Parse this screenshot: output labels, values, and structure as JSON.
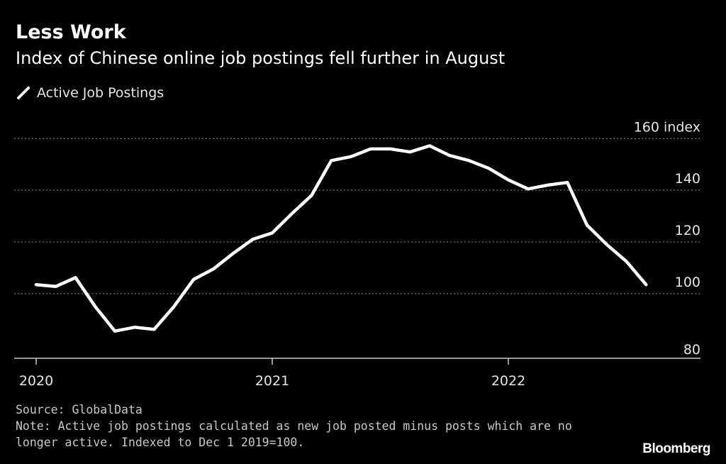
{
  "chart_data": {
    "type": "line",
    "title": "Less Work",
    "subtitle": "Index of Chinese online job postings fell further in August",
    "series": [
      {
        "name": "Active Job Postings",
        "color": "#ffffff",
        "x": [
          "2020-01",
          "2020-02",
          "2020-03",
          "2020-04",
          "2020-05",
          "2020-06",
          "2020-07",
          "2020-08",
          "2020-09",
          "2020-10",
          "2020-11",
          "2020-12",
          "2021-01",
          "2021-02",
          "2021-03",
          "2021-04",
          "2021-05",
          "2021-06",
          "2021-07",
          "2021-08",
          "2021-09",
          "2021-10",
          "2021-11",
          "2021-12",
          "2022-01",
          "2022-02",
          "2022-03",
          "2022-04",
          "2022-05",
          "2022-06",
          "2022-07",
          "2022-08"
        ],
        "values": [
          103.5,
          102.8,
          106.2,
          95,
          85.5,
          87,
          86.2,
          95,
          105.5,
          109.5,
          115.5,
          121,
          123.5,
          131,
          138,
          151.5,
          153,
          156,
          156,
          154.8,
          157.2,
          153.5,
          151.5,
          148.5,
          144,
          140.5,
          142,
          143,
          126.5,
          119,
          112.5,
          103.5
        ]
      }
    ],
    "y_axis": {
      "ylim": [
        75,
        162
      ],
      "ticks": [
        160,
        140,
        120,
        100,
        80
      ],
      "tick_labels": [
        "160",
        "140",
        "120",
        "100",
        "80"
      ],
      "unit_label": "index",
      "position": "right",
      "grid": true
    },
    "x_axis": {
      "tick_labels": [
        "2020",
        "2021",
        "2022"
      ],
      "tick_dates": [
        "2020-01",
        "2021-01",
        "2022-01"
      ]
    },
    "legend_placement": "top-left"
  },
  "source": "Source: GlobalData",
  "note": "Note: Active job postings calculated as new job posted minus posts which are no longer active. Indexed to Dec 1 2019=100.",
  "brand": "Bloomberg",
  "colors": {
    "background": "#000000",
    "line": "#ffffff",
    "grid": "#777777",
    "text": "#ffffff"
  }
}
